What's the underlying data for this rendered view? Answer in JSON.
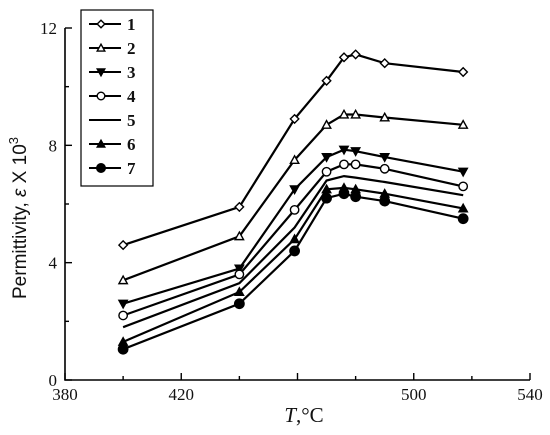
{
  "chart_data": {
    "type": "line",
    "title": "",
    "xlabel_var": "T",
    "xlabel_unit": ",°C",
    "ylabel_text": "Permittivity, ",
    "ylabel_sym": "ε",
    "ylabel_x": " X 10",
    "ylabel_exp": "3",
    "xlim": [
      380,
      540
    ],
    "ylim": [
      0,
      12
    ],
    "xticks": [
      380,
      420,
      460,
      500,
      540
    ],
    "xtick_labels": [
      "380",
      "420",
      "",
      "500",
      "540"
    ],
    "yticks": [
      0,
      4,
      8,
      12
    ],
    "ytick_labels": [
      "0",
      "4",
      "8",
      "12"
    ],
    "grid": false,
    "legend_position": "top-left",
    "series": [
      {
        "name": "1",
        "marker": "diamond-open",
        "x": [
          400,
          440,
          459,
          470,
          476,
          480,
          490,
          517
        ],
        "y": [
          4.6,
          5.9,
          8.9,
          10.2,
          11.0,
          11.1,
          10.8,
          10.5
        ]
      },
      {
        "name": "2",
        "marker": "triangle-open",
        "x": [
          400,
          440,
          459,
          470,
          476,
          480,
          490,
          517
        ],
        "y": [
          3.4,
          4.9,
          7.5,
          8.7,
          9.05,
          9.05,
          8.95,
          8.7
        ]
      },
      {
        "name": "3",
        "marker": "triangle-down-filled",
        "x": [
          400,
          440,
          459,
          470,
          476,
          480,
          490,
          517
        ],
        "y": [
          2.6,
          3.8,
          6.5,
          7.6,
          7.85,
          7.8,
          7.6,
          7.1
        ]
      },
      {
        "name": "4",
        "marker": "circle-open",
        "x": [
          400,
          440,
          459,
          470,
          476,
          480,
          490,
          517
        ],
        "y": [
          2.2,
          3.6,
          5.8,
          7.1,
          7.35,
          7.35,
          7.2,
          6.6
        ]
      },
      {
        "name": "5",
        "marker": "none",
        "x": [
          400,
          440,
          459,
          470,
          476,
          480,
          490,
          517
        ],
        "y": [
          1.8,
          3.3,
          5.2,
          6.8,
          6.95,
          6.9,
          6.75,
          6.3
        ]
      },
      {
        "name": "6",
        "marker": "triangle-filled",
        "x": [
          400,
          440,
          459,
          470,
          476,
          480,
          490,
          517
        ],
        "y": [
          1.3,
          3.0,
          4.8,
          6.5,
          6.55,
          6.5,
          6.35,
          5.85
        ]
      },
      {
        "name": "7",
        "marker": "circle-filled",
        "x": [
          400,
          440,
          459,
          470,
          476,
          480,
          490,
          517
        ],
        "y": [
          1.05,
          2.6,
          4.4,
          6.2,
          6.35,
          6.25,
          6.1,
          5.5
        ]
      }
    ]
  }
}
